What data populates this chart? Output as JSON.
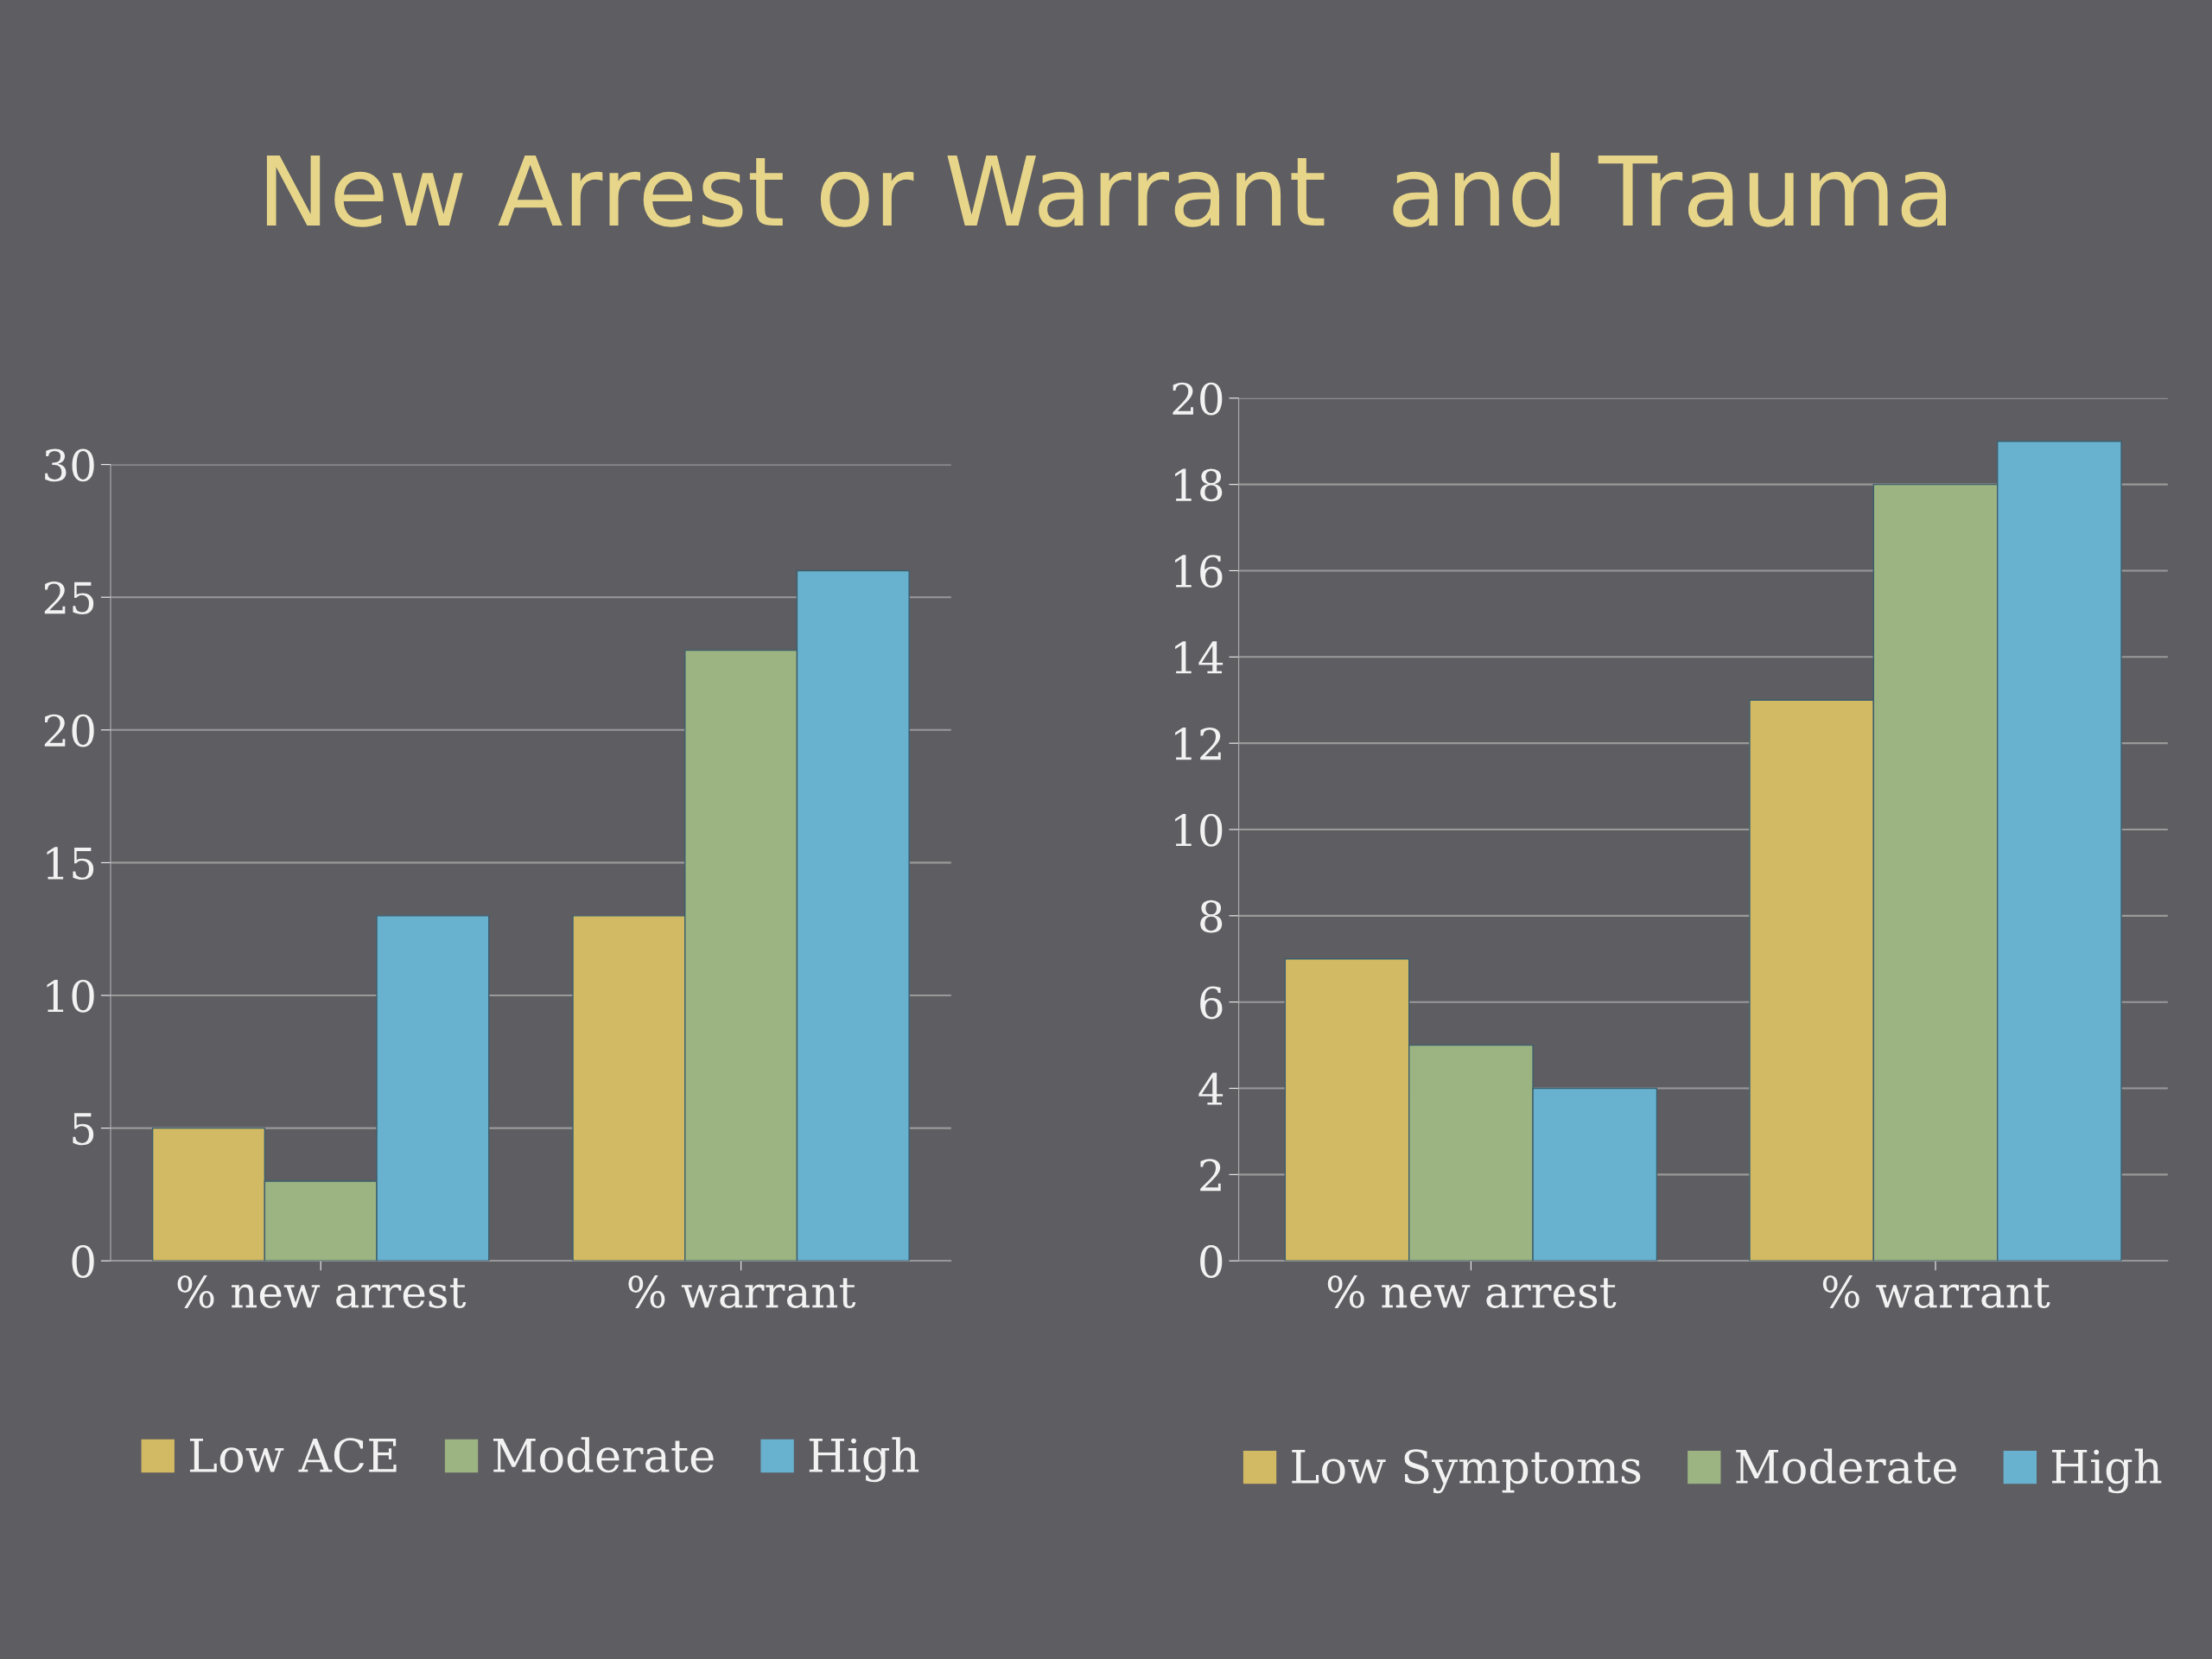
{
  "chart_data": [
    {
      "type": "bar",
      "title": "New Arrest or Warrant  and Trauma",
      "categories": [
        "% new arrest",
        "% warrant"
      ],
      "ylim": [
        0,
        30
      ],
      "yticks": [
        0,
        5,
        10,
        15,
        20,
        25,
        30
      ],
      "grid": "y",
      "legend": "bottom",
      "series": [
        {
          "name": "Low ACE",
          "color": "#d2b963",
          "values": [
            5,
            13
          ]
        },
        {
          "name": "Moderate",
          "color": "#9cb382",
          "values": [
            3,
            23
          ]
        },
        {
          "name": "High",
          "color": "#69b2cf",
          "values": [
            13,
            26
          ]
        }
      ]
    },
    {
      "type": "bar",
      "categories": [
        "% new arrest",
        "% warrant"
      ],
      "ylim": [
        0,
        20
      ],
      "yticks": [
        0,
        2,
        4,
        6,
        8,
        10,
        12,
        14,
        16,
        18,
        20
      ],
      "grid": "y",
      "legend": "bottom",
      "series": [
        {
          "name": "Low Symptoms",
          "color": "#d2b963",
          "values": [
            7,
            13
          ]
        },
        {
          "name": "Moderate",
          "color": "#9cb382",
          "values": [
            5,
            18
          ]
        },
        {
          "name": "High",
          "color": "#69b2cf",
          "values": [
            4,
            19
          ]
        }
      ]
    }
  ]
}
